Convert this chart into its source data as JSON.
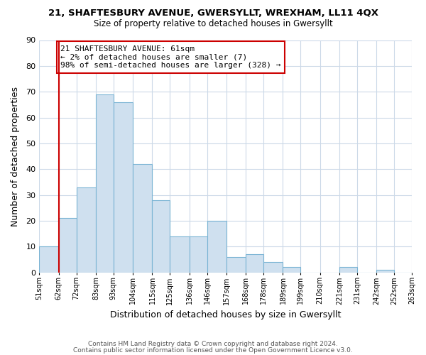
{
  "title": "21, SHAFTESBURY AVENUE, GWERSYLLT, WREXHAM, LL11 4QX",
  "subtitle": "Size of property relative to detached houses in Gwersyllt",
  "xlabel": "Distribution of detached houses by size in Gwersyllt",
  "ylabel": "Number of detached properties",
  "bar_left_edges": [
    51,
    62,
    72,
    83,
    93,
    104,
    115,
    125,
    136,
    146,
    157,
    168,
    178,
    189,
    199,
    210,
    221,
    231,
    242,
    252
  ],
  "bar_heights": [
    10,
    21,
    33,
    69,
    66,
    42,
    28,
    14,
    14,
    20,
    6,
    7,
    4,
    2,
    0,
    0,
    2,
    0,
    1,
    0
  ],
  "bar_color": "#cfe0ef",
  "bar_edge_color": "#7ab4d4",
  "tick_labels": [
    "51sqm",
    "62sqm",
    "72sqm",
    "83sqm",
    "93sqm",
    "104sqm",
    "115sqm",
    "125sqm",
    "136sqm",
    "146sqm",
    "157sqm",
    "168sqm",
    "178sqm",
    "189sqm",
    "199sqm",
    "210sqm",
    "221sqm",
    "231sqm",
    "242sqm",
    "252sqm",
    "263sqm"
  ],
  "ylim": [
    0,
    90
  ],
  "yticks": [
    0,
    10,
    20,
    30,
    40,
    50,
    60,
    70,
    80,
    90
  ],
  "property_line_x": 62,
  "annotation_title": "21 SHAFTESBURY AVENUE: 61sqm",
  "annotation_line1": "← 2% of detached houses are smaller (7)",
  "annotation_line2": "98% of semi-detached houses are larger (328) →",
  "annotation_box_color": "#ffffff",
  "annotation_box_edge_color": "#cc0000",
  "property_line_color": "#cc0000",
  "footer1": "Contains HM Land Registry data © Crown copyright and database right 2024.",
  "footer2": "Contains public sector information licensed under the Open Government Licence v3.0.",
  "background_color": "#ffffff",
  "grid_color": "#ccd9e8"
}
